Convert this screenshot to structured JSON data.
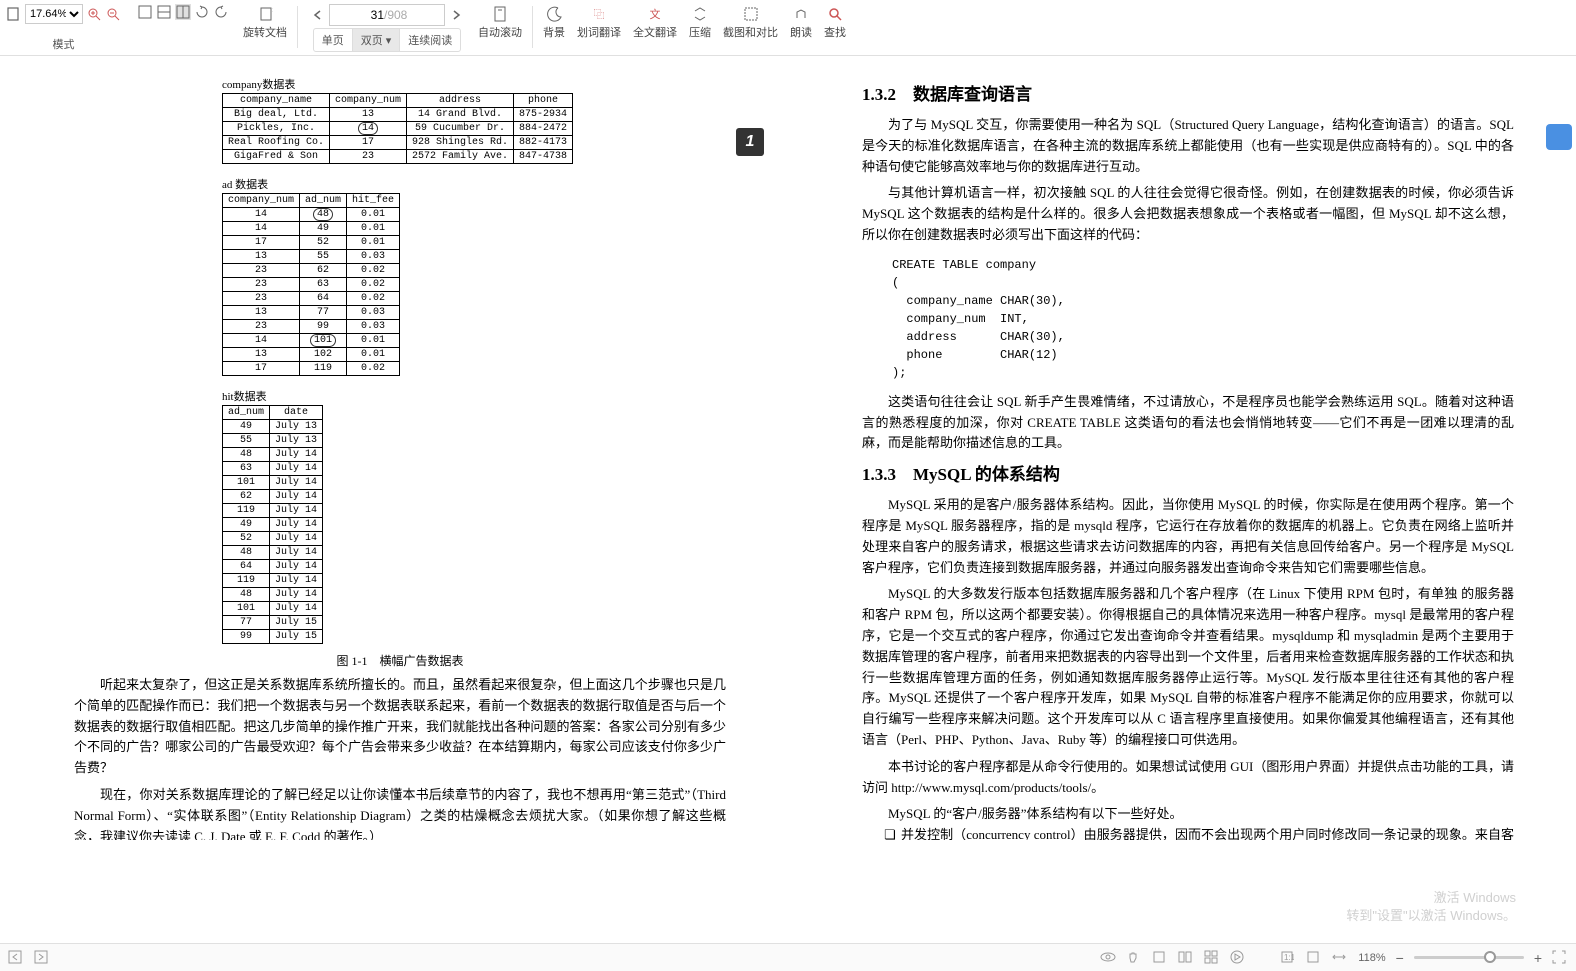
{
  "toolbar": {
    "zoom": "17.64%",
    "mode": "模式",
    "page_current": "31",
    "page_total": "/908",
    "rotate": "旋转文档",
    "single": "单页",
    "double": "双页",
    "cont": "连续阅读",
    "autoscroll": "自动滚动",
    "bg": "背景",
    "dict": "划词翻译",
    "fulltrans": "全文翻译",
    "compress": "压缩",
    "compare": "截图和对比",
    "read": "朗读",
    "find": "查找"
  },
  "left": {
    "t1_cap": "company数据表",
    "t1_headers": [
      "company_name",
      "company_num",
      "address",
      "phone"
    ],
    "t1_rows": [
      [
        "Big deal, Ltd.",
        "13",
        "14 Grand Blvd.",
        "875-2934"
      ],
      [
        "Pickles, Inc.",
        "14",
        "59 Cucumber Dr.",
        "884-2472"
      ],
      [
        "Real Roofing Co.",
        "17",
        "928 Shingles Rd.",
        "882-4173"
      ],
      [
        "GigaFred & Son",
        "23",
        "2572 Family Ave.",
        "847-4738"
      ]
    ],
    "t2_cap": "ad 数据表",
    "t2_headers": [
      "company_num",
      "ad_num",
      "hit_fee"
    ],
    "t2_rows": [
      [
        "14",
        "48",
        "0.01"
      ],
      [
        "14",
        "49",
        "0.01"
      ],
      [
        "17",
        "52",
        "0.01"
      ],
      [
        "13",
        "55",
        "0.03"
      ],
      [
        "23",
        "62",
        "0.02"
      ],
      [
        "23",
        "63",
        "0.02"
      ],
      [
        "23",
        "64",
        "0.02"
      ],
      [
        "13",
        "77",
        "0.03"
      ],
      [
        "23",
        "99",
        "0.03"
      ],
      [
        "14",
        "101",
        "0.01"
      ],
      [
        "13",
        "102",
        "0.01"
      ],
      [
        "17",
        "119",
        "0.02"
      ]
    ],
    "t3_cap": "hit数据表",
    "t3_headers": [
      "ad_num",
      "date"
    ],
    "t3_rows": [
      [
        "49",
        "July 13"
      ],
      [
        "55",
        "July 13"
      ],
      [
        "48",
        "July 14"
      ],
      [
        "63",
        "July 14"
      ],
      [
        "101",
        "July 14"
      ],
      [
        "62",
        "July 14"
      ],
      [
        "119",
        "July 14"
      ],
      [
        "49",
        "July 14"
      ],
      [
        "52",
        "July 14"
      ],
      [
        "48",
        "July 14"
      ],
      [
        "64",
        "July 14"
      ],
      [
        "119",
        "July 14"
      ],
      [
        "48",
        "July 14"
      ],
      [
        "101",
        "July 14"
      ],
      [
        "77",
        "July 15"
      ],
      [
        "99",
        "July 15"
      ]
    ],
    "fig": "图 1-1　横幅广告数据表",
    "p1": "听起来太复杂了，但这正是关系数据库系统所擅长的。而且，虽然看起来很复杂，但上面这几个步骤也只是几个简单的匹配操作而已：我们把一个数据表与另一个数据表联系起来，看前一个数据表的数据行取值是否与后一个数据表的数据行取值相匹配。把这几步简单的操作推广开来，我们就能找出各种问题的答案：各家公司分别有多少个不同的广告？哪家公司的广告最受欢迎？每个广告会带来多少收益？在本结算期内，每家公司应该支付你多少广告费？",
    "p2": "现在，你对关系数据库理论的了解已经足以让你读懂本书后续章节的内容了，我也不想再用“第三范式”（Third Normal Form）、“实体联系图”（Entity Relationship Diagram）之类的枯燥概念去烦扰大家。（如果你想了解这些概念，我建议你去读读 C. J. Date 或 E. F. Codd 的著作。）",
    "corner": "1"
  },
  "right": {
    "h1": "1.3.2　数据库查询语言",
    "p1": "为了与 MySQL 交互，你需要使用一种名为 SQL（Structured Query Language，结构化查询语言）的语言。SQL 是今天的标准化数据库语言，在各种主流的数据库系统上都能使用（也有一些实现是供应商特有的）。SQL 中的各种语句使它能够高效率地与你的数据库进行互动。",
    "p2": "与其他计算机语言一样，初次接触 SQL 的人往往会觉得它很奇怪。例如，在创建数据表的时候，你必须告诉 MySQL 这个数据表的结构是什么样的。很多人会把数据表想象成一个表格或者一幅图，但 MySQL 却不这么想，所以你在创建数据表时必须写出下面这样的代码：",
    "code": "CREATE TABLE company\n(\n  company_name CHAR(30),\n  company_num  INT,\n  address      CHAR(30),\n  phone        CHAR(12)\n);",
    "p3": "这类语句往往会让 SQL 新手产生畏难情绪，不过请放心，不是程序员也能学会熟练运用 SQL。随着对这种语言的熟悉程度的加深，你对 CREATE TABLE 这类语句的看法也会悄悄地转变——它们不再是一团难以理清的乱麻，而是能帮助你描述信息的工具。",
    "h2": "1.3.3　MySQL 的体系结构",
    "p4": "MySQL 采用的是客户/服务器体系结构。因此，当你使用 MySQL 的时候，你实际是在使用两个程序。第一个程序是 MySQL 服务器程序，指的是 mysqld 程序，它运行在存放着你的数据库的机器上。它负责在网络上监听并处理来自客户的服务请求，根据这些请求去访问数据库的内容，再把有关信息回传给客户。另一个程序是 MySQL 客户程序，它们负责连接到数据库服务器，并通过向服务器发出查询命令来告知它们需要哪些信息。",
    "p5": "MySQL 的大多数发行版本包括数据库服务器和几个客户程序（在 Linux 下使用 RPM 包时，有单独 的服务器和客户 RPM 包，所以这两个都要安装）。你得根据自己的具体情况来选用一种客户程序。mysql 是最常用的客户程序，它是一个交互式的客户程序，你通过它发出查询命令并查看结果。mysqldump 和 mysqladmin 是两个主要用于数据库管理的客户程序，前者用来把数据表的内容导出到一个文件里，后者用来检查数据库服务器的工作状态和执行一些数据库管理方面的任务，例如通知数据库服务器停止运行等。MySQL 发行版本里往往还有其他的客户程序。MySQL 还提供了一个客户程序开发库，如果 MySQL 自带的标准客户程序不能满足你的应用要求，你就可以自行编写一些程序来解决问题。这个开发库可以从 C 语言程序里直接使用。如果你偏爱其他编程语言，还有其他语言（Perl、PHP、Python、Java、Ruby 等）的编程接口可供选用。",
    "p6": "本书讨论的客户程序都是从命令行使用的。如果想试试使用 GUI（图形用户界面）并提供点击功能的工具，请访问 http://www.mysql.com/products/tools/。",
    "p7": "MySQL 的“客户/服务器”体系结构有以下一些好处。",
    "b1": "并发控制（concurrency control）由服务器提供，因而不会出现两个用户同时修改同一条记录的现象。来自客户的请求全都要经过服务器，由服务器来安排处理它们的先后顺序。即使出现多个客户同时请求访问同一个数据库的情况，也用不着由这些客户去发现对方并进行协商。它们只负责把请求发往服务器，而谁先谁后的事则完全由服务器去决定。"
  },
  "status": {
    "zoom": "118%"
  },
  "watermark": {
    "l1": "激活 Windows",
    "l2": "转到\"设置\"以激活 Windows。"
  }
}
